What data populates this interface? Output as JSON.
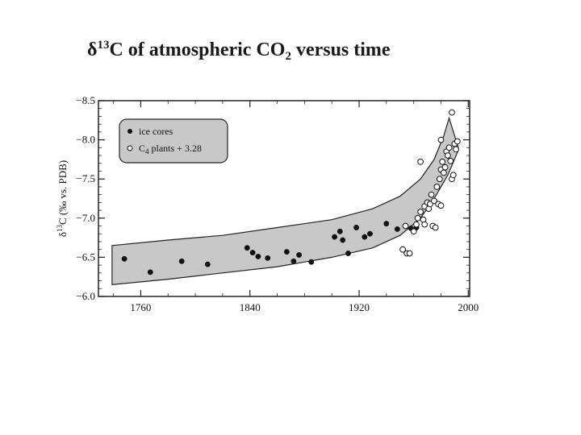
{
  "slide": {
    "title_delta": "δ",
    "title_sup": "13",
    "title_a": "C of atmospheric CO",
    "title_sub": "2",
    "title_b": " versus time"
  },
  "chart_data": {
    "type": "scatter",
    "ylabel": "δ13C (‰ vs. PDB)",
    "ylabel_parts": {
      "pre": "δ",
      "sup": "13",
      "post": "C (‰ vs. PDB)"
    },
    "x_ticks": [
      1760,
      1840,
      1920,
      2000
    ],
    "y_ticks": [
      -6.0,
      -6.5,
      -7.0,
      -7.5,
      -8.0,
      -8.5
    ],
    "y_tick_labels": [
      "−6.0",
      "−6.5",
      "−7.0",
      "−7.5",
      "−8.0",
      "−8.5"
    ],
    "xlim": [
      1729,
      2001
    ],
    "ylim": [
      -6.0,
      -8.5
    ],
    "y_inverted": true,
    "legend": {
      "position": "top-left",
      "entries": [
        {
          "marker": "filled",
          "label": "ice cores"
        },
        {
          "marker": "open",
          "label": "C4 plants + 3.28",
          "label_pre": "C",
          "label_sub": "4",
          "label_post": " plants + 3.28"
        }
      ]
    },
    "band": {
      "upper": [
        [
          1739,
          -6.65
        ],
        [
          1780,
          -6.72
        ],
        [
          1820,
          -6.78
        ],
        [
          1860,
          -6.88
        ],
        [
          1900,
          -6.98
        ],
        [
          1930,
          -7.12
        ],
        [
          1950,
          -7.28
        ],
        [
          1965,
          -7.5
        ],
        [
          1975,
          -7.75
        ],
        [
          1982,
          -8.05
        ],
        [
          1986,
          -8.28
        ]
      ],
      "lower": [
        [
          1739,
          -6.15
        ],
        [
          1780,
          -6.22
        ],
        [
          1820,
          -6.3
        ],
        [
          1860,
          -6.38
        ],
        [
          1900,
          -6.5
        ],
        [
          1930,
          -6.62
        ],
        [
          1950,
          -6.78
        ],
        [
          1965,
          -7.0
        ],
        [
          1975,
          -7.25
        ],
        [
          1985,
          -7.55
        ],
        [
          1993,
          -7.88
        ]
      ]
    },
    "series": [
      {
        "name": "ice cores",
        "marker": "filled",
        "points": [
          [
            1748,
            -6.48
          ],
          [
            1767,
            -6.31
          ],
          [
            1790,
            -6.45
          ],
          [
            1809,
            -6.41
          ],
          [
            1838,
            -6.62
          ],
          [
            1842,
            -6.56
          ],
          [
            1846,
            -6.51
          ],
          [
            1853,
            -6.49
          ],
          [
            1867,
            -6.57
          ],
          [
            1872,
            -6.45
          ],
          [
            1876,
            -6.53
          ],
          [
            1885,
            -6.44
          ],
          [
            1902,
            -6.76
          ],
          [
            1906,
            -6.83
          ],
          [
            1908,
            -6.72
          ],
          [
            1912,
            -6.55
          ],
          [
            1918,
            -6.88
          ],
          [
            1924,
            -6.76
          ],
          [
            1928,
            -6.8
          ],
          [
            1940,
            -6.93
          ],
          [
            1948,
            -6.86
          ],
          [
            1958,
            -6.87
          ],
          [
            1960,
            -6.84
          ],
          [
            1962,
            -6.88
          ]
        ]
      },
      {
        "name": "C4 plants + 3.28",
        "marker": "open",
        "points": [
          [
            1952,
            -6.6
          ],
          [
            1955,
            -6.55
          ],
          [
            1957,
            -6.55
          ],
          [
            1954,
            -6.9
          ],
          [
            1960,
            -6.83
          ],
          [
            1962,
            -6.92
          ],
          [
            1963,
            -7.0
          ],
          [
            1965,
            -7.08
          ],
          [
            1967,
            -6.98
          ],
          [
            1968,
            -6.92
          ],
          [
            1968,
            -7.15
          ],
          [
            1970,
            -7.2
          ],
          [
            1971,
            -7.12
          ],
          [
            1972,
            -7.18
          ],
          [
            1973,
            -7.3
          ],
          [
            1974,
            -6.9
          ],
          [
            1975,
            -7.22
          ],
          [
            1976,
            -6.88
          ],
          [
            1977,
            -7.4
          ],
          [
            1978,
            -7.18
          ],
          [
            1979,
            -7.5
          ],
          [
            1980,
            -7.16
          ],
          [
            1980,
            -7.62
          ],
          [
            1981,
            -7.72
          ],
          [
            1982,
            -7.58
          ],
          [
            1983,
            -7.65
          ],
          [
            1984,
            -7.85
          ],
          [
            1985,
            -7.8
          ],
          [
            1986,
            -7.9
          ],
          [
            1987,
            -7.73
          ],
          [
            1988,
            -7.5
          ],
          [
            1989,
            -7.55
          ],
          [
            1990,
            -7.95
          ],
          [
            1991,
            -7.88
          ],
          [
            1992,
            -7.98
          ],
          [
            1965,
            -7.72
          ],
          [
            1980,
            -8.0
          ],
          [
            1988,
            -8.35
          ]
        ]
      }
    ]
  }
}
